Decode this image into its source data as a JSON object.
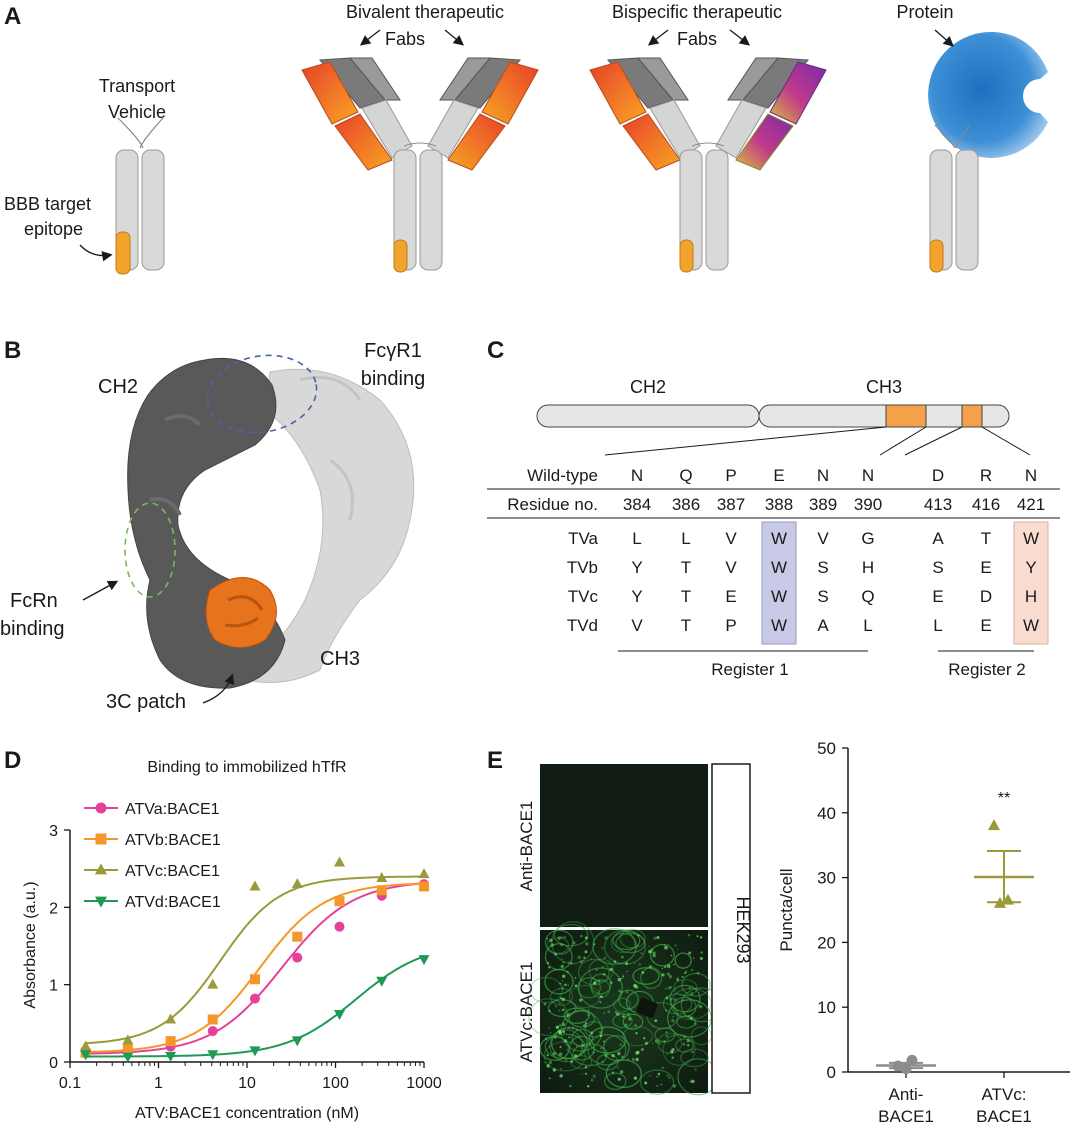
{
  "panelA": {
    "letter": "A",
    "label_transport1": "Transport",
    "label_transport2": "Vehicle",
    "label_bbb1": "BBB target",
    "label_bbb2": "epitope",
    "label_bivalent1": "Bivalent therapeutic",
    "label_bivalent2": "Fabs",
    "label_bispecific1": "Bispecific therapeutic",
    "label_bispecific2": "Fabs",
    "label_protein": "Protein"
  },
  "panelB": {
    "letter": "B",
    "label_ch2": "CH2",
    "label_ch3": "CH3",
    "label_fcgr1_1": "FcγR1",
    "label_fcgr1_2": "binding",
    "label_fcrn1": "FcRn",
    "label_fcrn2": "binding",
    "label_patch": "3C patch"
  },
  "panelC": {
    "letter": "C",
    "domain_ch2": "CH2",
    "domain_ch3": "CH3",
    "wildtype_label": "Wild-type",
    "residue_label": "Residue no.",
    "wildtype": [
      "N",
      "Q",
      "P",
      "E",
      "N",
      "N",
      "D",
      "R",
      "N"
    ],
    "residues": [
      "384",
      "386",
      "387",
      "388",
      "389",
      "390",
      "413",
      "416",
      "421"
    ],
    "rows": [
      {
        "name": "TVa",
        "values": [
          "L",
          "L",
          "V",
          "W",
          "V",
          "G",
          "A",
          "T",
          "W"
        ]
      },
      {
        "name": "TVb",
        "values": [
          "Y",
          "T",
          "V",
          "W",
          "S",
          "H",
          "S",
          "E",
          "Y"
        ]
      },
      {
        "name": "TVc",
        "values": [
          "Y",
          "T",
          "E",
          "W",
          "S",
          "Q",
          "E",
          "D",
          "H"
        ]
      },
      {
        "name": "TVd",
        "values": [
          "V",
          "T",
          "P",
          "W",
          "A",
          "L",
          "L",
          "E",
          "W"
        ]
      }
    ],
    "register1": "Register 1",
    "register2": "Register 2"
  },
  "panelD": {
    "letter": "D"
  },
  "panelE": {
    "letter": "E",
    "img_label_top": "Anti-BACE1",
    "img_label_bottom": "ATVc:BACE1",
    "cell_line": "HEK293",
    "significance": "**"
  },
  "chart_data": [
    {
      "type": "line",
      "title": "Binding to immobilized hTfR",
      "xlabel": "ATV:BACE1 concentration (nM)",
      "ylabel": "Absorbance (a.u.)",
      "x_scale": "log",
      "xlim": [
        0.1,
        1000
      ],
      "ylim": [
        0,
        3
      ],
      "x_ticks": [
        "0.1",
        "1",
        "10",
        "100",
        "1000"
      ],
      "y_ticks": [
        "0",
        "1",
        "2",
        "3"
      ],
      "legend_position": "top-left",
      "x": [
        0.15,
        0.45,
        1.37,
        4.1,
        12.3,
        37,
        111,
        333,
        1000
      ],
      "series": [
        {
          "name": "ATVa:BACE1",
          "color": "#e6419a",
          "marker": "circle",
          "values": [
            0.12,
            0.15,
            0.2,
            0.4,
            0.82,
            1.35,
            1.75,
            2.15,
            2.3
          ],
          "fit": {
            "bottom": 0.1,
            "top": 2.35,
            "ec50": 25,
            "hill": 1.1
          }
        },
        {
          "name": "ATVb:BACE1",
          "color": "#f5962a",
          "marker": "square",
          "values": [
            0.12,
            0.17,
            0.27,
            0.55,
            1.07,
            1.62,
            2.08,
            2.22,
            2.27
          ],
          "fit": {
            "bottom": 0.12,
            "top": 2.32,
            "ec50": 14,
            "hill": 1.2
          }
        },
        {
          "name": "ATVc:BACE1",
          "color": "#9a9a3a",
          "marker": "triangle-up",
          "values": [
            0.2,
            0.28,
            0.55,
            1.0,
            2.27,
            2.3,
            2.58,
            2.38,
            2.43
          ],
          "fit": {
            "bottom": 0.22,
            "top": 2.4,
            "ec50": 5,
            "hill": 1.3
          }
        },
        {
          "name": "ATVd:BACE1",
          "color": "#1f9a55",
          "marker": "triangle-down",
          "values": [
            0.1,
            0.07,
            0.08,
            0.1,
            0.15,
            0.28,
            0.62,
            1.05,
            1.33
          ],
          "fit": {
            "bottom": 0.07,
            "top": 1.55,
            "ec50": 170,
            "hill": 1.1
          }
        }
      ]
    },
    {
      "type": "scatter",
      "ylabel": "Puncta/cell",
      "ylim": [
        0,
        50
      ],
      "y_ticks": [
        "0",
        "10",
        "20",
        "30",
        "40",
        "50"
      ],
      "categories": [
        "Anti-\nBACE1",
        "ATVc:\nBACE1"
      ],
      "category_lines": [
        [
          "Anti-",
          "BACE1"
        ],
        [
          "ATVc:",
          "BACE1"
        ]
      ],
      "series": [
        {
          "category": "Anti-BACE1",
          "color": "#8c8c8c",
          "marker": "circle",
          "points": [
            1.8,
            0.5,
            0.9
          ],
          "mean": 1.0,
          "sem_low": 0.6,
          "sem_high": 1.4
        },
        {
          "category": "ATVc:BACE1",
          "color": "#9a9a3a",
          "marker": "triangle-up",
          "points": [
            38,
            26,
            26.5
          ],
          "mean": 30.1,
          "sem_low": 26.2,
          "sem_high": 34.1
        }
      ]
    }
  ]
}
